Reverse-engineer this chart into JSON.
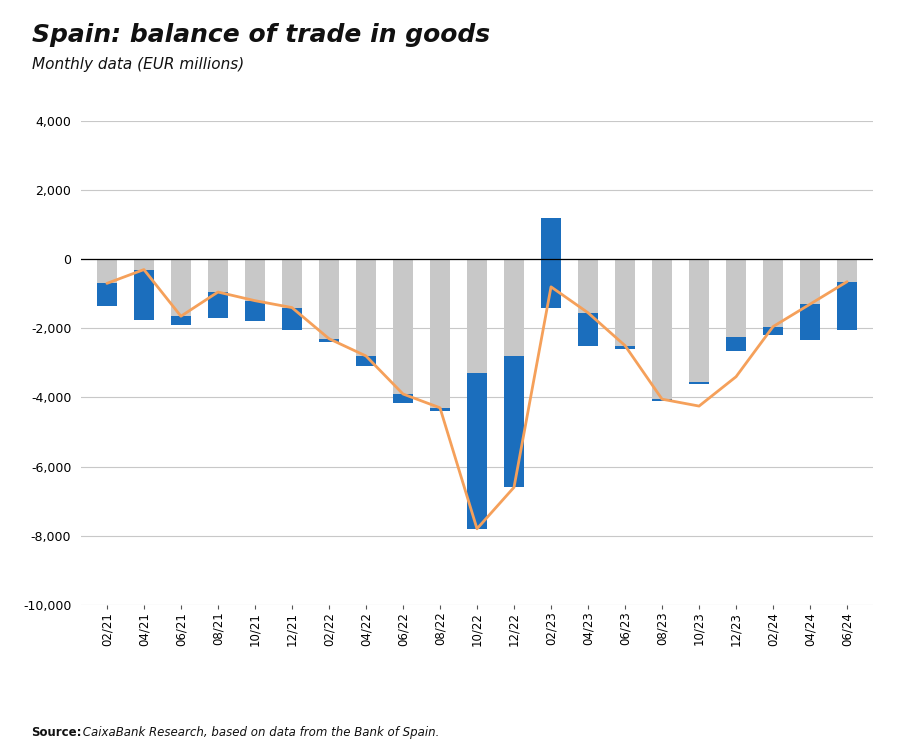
{
  "title": "Spain: balance of trade in goods",
  "subtitle": "Monthly data (EUR millions)",
  "source_bold": "Source:",
  "source_italic": " CaixaBank Research, based on data from the Bank of Spain.",
  "x_labels": [
    "02/21",
    "04/21",
    "06/21",
    "08/21",
    "10/21",
    "12/21",
    "02/22",
    "04/22",
    "06/22",
    "08/22",
    "10/22",
    "12/22",
    "02/23",
    "04/23",
    "06/23",
    "08/23",
    "10/23",
    "12/23",
    "02/24",
    "04/24",
    "06/24"
  ],
  "energy_goods": [
    -1350,
    -1750,
    -1900,
    -1700,
    -1800,
    -2050,
    -2400,
    -3100,
    -4150,
    -4400,
    -3300,
    -2800,
    -1400,
    -2500,
    -2600,
    -4100,
    -3600,
    -2650,
    -2200,
    -2350,
    -2050
  ],
  "non_energy_goods": [
    650,
    1450,
    250,
    750,
    600,
    650,
    100,
    300,
    250,
    100,
    -4500,
    -3800,
    2600,
    950,
    100,
    50,
    50,
    400,
    250,
    1050,
    1400
  ],
  "balance": [
    -700,
    -300,
    -1650,
    -950,
    -1200,
    -1400,
    -2300,
    -2800,
    -3900,
    -4300,
    -7800,
    -6600,
    -800,
    -1550,
    -2500,
    -4050,
    -4250,
    -3400,
    -1950,
    -1300,
    -650
  ],
  "ylim": [
    -10000,
    4000
  ],
  "yticks": [
    -10000,
    -8000,
    -6000,
    -4000,
    -2000,
    0,
    2000,
    4000
  ],
  "energy_color": "#c8c8c8",
  "non_energy_color": "#1b6ebd",
  "balance_color": "#f5a05a",
  "background_color": "#ffffff",
  "grid_color": "#c8c8c8",
  "title_fontsize": 18,
  "subtitle_fontsize": 11,
  "bar_width": 0.55
}
